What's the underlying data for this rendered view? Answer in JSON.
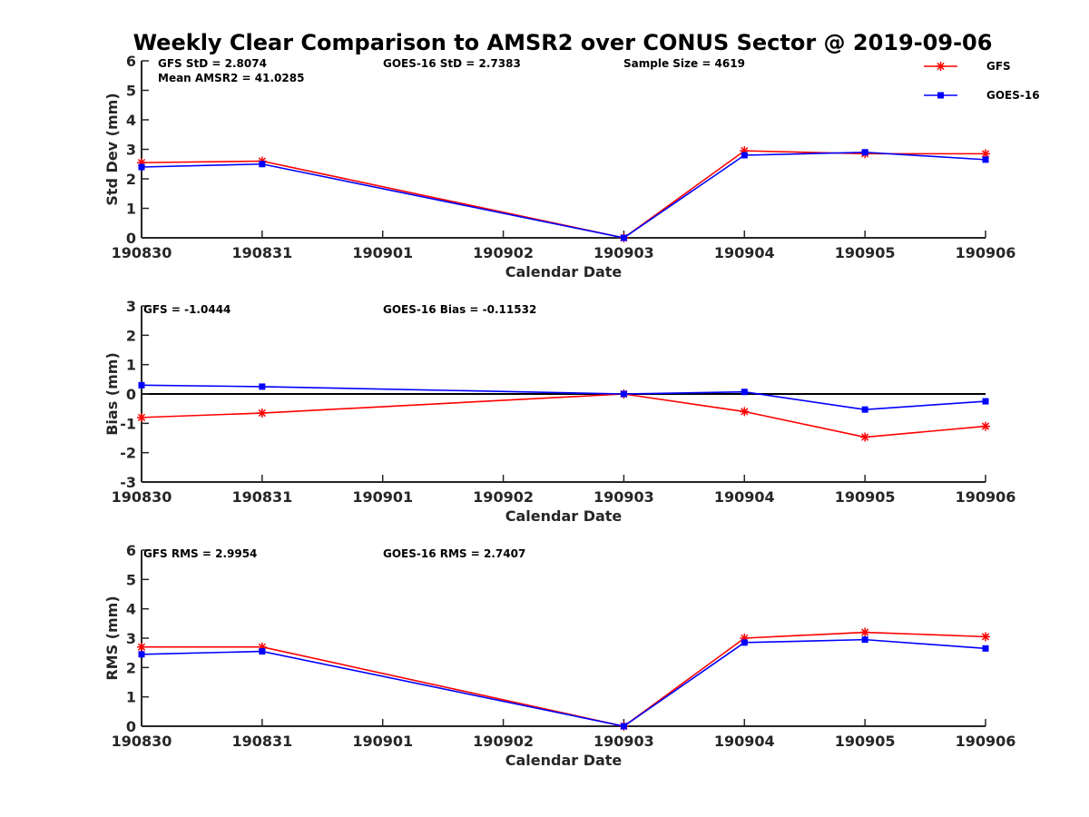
{
  "title": "Weekly Clear Comparison to AMSR2 over CONUS Sector @ 2019-09-06",
  "colors": {
    "gfs": "#ff0000",
    "goes": "#0000ff",
    "zero_line": "#000000",
    "axes": "#262626"
  },
  "legend": {
    "position": "top-right",
    "entries": [
      "GFS",
      "GOES-16"
    ]
  },
  "chart_data": [
    {
      "type": "line",
      "xlabel": "Calendar Date",
      "ylabel": "Std Dev (mm)",
      "categories": [
        "190830",
        "190831",
        "190901",
        "190902",
        "190903",
        "190904",
        "190905",
        "190906"
      ],
      "ylim": [
        0,
        6
      ],
      "yticks": [
        "0",
        "1",
        "2",
        "3",
        "4",
        "5",
        "6"
      ],
      "annotations": [
        "GFS StD = 2.8074",
        "GOES-16 StD = 2.7383",
        "Sample Size = 4619",
        "Mean AMSR2 = 41.0285"
      ],
      "series": [
        {
          "name": "GFS",
          "marker": "asterisk",
          "x": [
            "190830",
            "190831",
            "190903",
            "190904",
            "190905",
            "190906"
          ],
          "values": [
            2.55,
            2.6,
            0.0,
            2.95,
            2.85,
            2.85
          ]
        },
        {
          "name": "GOES-16",
          "marker": "square",
          "x": [
            "190830",
            "190831",
            "190903",
            "190904",
            "190905",
            "190906"
          ],
          "values": [
            2.4,
            2.5,
            0.0,
            2.8,
            2.9,
            2.65
          ]
        }
      ],
      "grid": false
    },
    {
      "type": "line",
      "xlabel": "Calendar Date",
      "ylabel": "Bias (mm)",
      "categories": [
        "190830",
        "190831",
        "190901",
        "190902",
        "190903",
        "190904",
        "190905",
        "190906"
      ],
      "ylim": [
        -3,
        3
      ],
      "yticks": [
        "-3",
        "-2",
        "-1",
        "0",
        "1",
        "2",
        "3"
      ],
      "annotations": [
        "GFS = -1.0444",
        "GOES-16 Bias  = -0.11532"
      ],
      "zero_line": true,
      "series": [
        {
          "name": "GFS",
          "marker": "asterisk",
          "x": [
            "190830",
            "190831",
            "190903",
            "190904",
            "190905",
            "190906"
          ],
          "values": [
            -0.8,
            -0.65,
            0.0,
            -0.6,
            -1.47,
            -1.1
          ]
        },
        {
          "name": "GOES-16",
          "marker": "square",
          "x": [
            "190830",
            "190831",
            "190903",
            "190904",
            "190905",
            "190906"
          ],
          "values": [
            0.3,
            0.25,
            0.0,
            0.07,
            -0.53,
            -0.25
          ]
        }
      ],
      "grid": false
    },
    {
      "type": "line",
      "xlabel": "Calendar Date",
      "ylabel": "RMS (mm)",
      "categories": [
        "190830",
        "190831",
        "190901",
        "190902",
        "190903",
        "190904",
        "190905",
        "190906"
      ],
      "ylim": [
        0,
        6
      ],
      "yticks": [
        "0",
        "1",
        "2",
        "3",
        "4",
        "5",
        "6"
      ],
      "annotations": [
        "GFS RMS = 2.9954",
        "GOES-16 RMS = 2.7407"
      ],
      "series": [
        {
          "name": "GFS",
          "marker": "asterisk",
          "x": [
            "190830",
            "190831",
            "190903",
            "190904",
            "190905",
            "190906"
          ],
          "values": [
            2.7,
            2.7,
            0.0,
            3.0,
            3.2,
            3.05
          ]
        },
        {
          "name": "GOES-16",
          "marker": "square",
          "x": [
            "190830",
            "190831",
            "190903",
            "190904",
            "190905",
            "190906"
          ],
          "values": [
            2.45,
            2.55,
            0.0,
            2.85,
            2.95,
            2.65
          ]
        }
      ],
      "grid": false
    }
  ]
}
